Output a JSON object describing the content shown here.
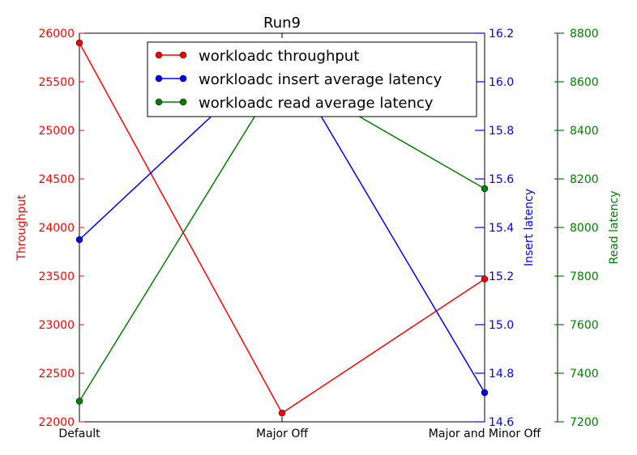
{
  "chart_data": {
    "type": "line",
    "title": "Run9",
    "categories": [
      "Default",
      "Major Off",
      "Major and Minor Off"
    ],
    "series": [
      {
        "name": "workloadc throughput",
        "axis": "left",
        "color": "#ff0000",
        "values": [
          25900,
          22090,
          23470
        ]
      },
      {
        "name": "workloadc insert average latency",
        "axis": "right1",
        "color": "#0000ff",
        "values": [
          15.35,
          16.13,
          14.72
        ]
      },
      {
        "name": "workloadc read average latency",
        "axis": "right2",
        "color": "#008000",
        "values": [
          7285,
          8640,
          8160
        ]
      }
    ],
    "axes": {
      "left": {
        "label": "Throughput",
        "color": "#ff0000",
        "ylim": [
          22000,
          26000
        ],
        "ticks": [
          "22000",
          "22500",
          "23000",
          "23500",
          "24000",
          "24500",
          "25000",
          "25500",
          "26000"
        ]
      },
      "right1": {
        "label": "Insert latency",
        "color": "#0000ff",
        "ylim": [
          14.6,
          16.2
        ],
        "ticks": [
          "14.6",
          "14.8",
          "15.0",
          "15.2",
          "15.4",
          "15.6",
          "15.8",
          "16.0",
          "16.2"
        ]
      },
      "right2": {
        "label": "Read latency",
        "color": "#008000",
        "ylim": [
          7200,
          8800
        ],
        "ticks": [
          "7200",
          "7400",
          "7600",
          "7800",
          "8000",
          "8200",
          "8400",
          "8600",
          "8800"
        ]
      }
    },
    "legend": "upper-center",
    "grid": false
  }
}
